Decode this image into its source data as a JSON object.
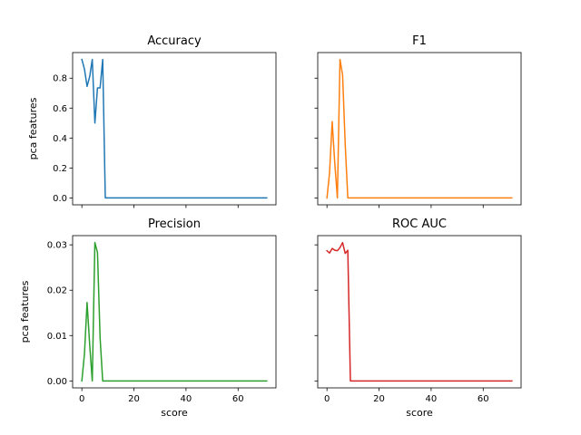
{
  "chart_data": [
    {
      "type": "line",
      "title": "Accuracy",
      "xlabel": "",
      "ylabel": "pca features",
      "color": "#1f77b4",
      "x": [
        0,
        1,
        2,
        3,
        4,
        5,
        6,
        7,
        8,
        9,
        10,
        20,
        30,
        40,
        50,
        60,
        71
      ],
      "y": [
        0.925,
        0.86,
        0.745,
        0.81,
        0.925,
        0.5,
        0.735,
        0.735,
        0.925,
        0,
        0,
        0,
        0,
        0,
        0,
        0,
        0
      ],
      "xlim": [
        -3.55,
        74.55
      ],
      "ylim": [
        -0.046,
        0.971
      ],
      "xticks": [
        0,
        20,
        40,
        60
      ],
      "xtick_labels": [
        "",
        "",
        "",
        ""
      ],
      "yticks": [
        0,
        0.2,
        0.4,
        0.6,
        0.8
      ],
      "ytick_labels": [
        "0.0",
        "0.2",
        "0.4",
        "0.6",
        "0.8"
      ]
    },
    {
      "type": "line",
      "title": "F1",
      "xlabel": "",
      "ylabel": "",
      "color": "#ff7f0e",
      "x": [
        0,
        1,
        2,
        3,
        4,
        5,
        6,
        7,
        8,
        9,
        10,
        20,
        30,
        40,
        50,
        60,
        71
      ],
      "y": [
        0,
        0.17,
        0.51,
        0.23,
        0,
        0.925,
        0.82,
        0.36,
        0,
        0,
        0,
        0,
        0,
        0,
        0,
        0,
        0
      ],
      "xlim": [
        -3.55,
        74.55
      ],
      "ylim": [
        -0.046,
        0.971
      ],
      "xticks": [
        0,
        20,
        40,
        60
      ],
      "xtick_labels": [
        "",
        "",
        "",
        ""
      ],
      "yticks": [
        0,
        0.2,
        0.4,
        0.6,
        0.8
      ],
      "ytick_labels": [
        "",
        "",
        "",
        "",
        ""
      ]
    },
    {
      "type": "line",
      "title": "Precision",
      "xlabel": "score",
      "ylabel": "pca features",
      "color": "#2ca02c",
      "x": [
        0,
        1,
        2,
        3,
        4,
        5,
        6,
        7,
        8,
        9,
        10,
        20,
        30,
        40,
        50,
        60,
        71
      ],
      "y": [
        0,
        0.006,
        0.0173,
        0.008,
        0,
        0.0305,
        0.0283,
        0.0095,
        0,
        0,
        0,
        0,
        0,
        0,
        0,
        0,
        0
      ],
      "xlim": [
        -3.55,
        74.55
      ],
      "ylim": [
        -0.00153,
        0.03203
      ],
      "xticks": [
        0,
        20,
        40,
        60
      ],
      "xtick_labels": [
        "0",
        "20",
        "40",
        "60"
      ],
      "yticks": [
        0,
        0.01,
        0.02,
        0.03
      ],
      "ytick_labels": [
        "0.00",
        "0.01",
        "0.02",
        "0.03"
      ]
    },
    {
      "type": "line",
      "title": "ROC AUC",
      "xlabel": "score",
      "ylabel": "",
      "color": "#d62728",
      "x": [
        0,
        1,
        2,
        3,
        4,
        5,
        6,
        7,
        8,
        9,
        10,
        20,
        30,
        40,
        50,
        60,
        71
      ],
      "y": [
        0.0287,
        0.0282,
        0.0292,
        0.0288,
        0.0287,
        0.0294,
        0.0305,
        0.0281,
        0.0288,
        0,
        0,
        0,
        0,
        0,
        0,
        0,
        0
      ],
      "xlim": [
        -3.55,
        74.55
      ],
      "ylim": [
        -0.00153,
        0.03203
      ],
      "xticks": [
        0,
        20,
        40,
        60
      ],
      "xtick_labels": [
        "0",
        "20",
        "40",
        "60"
      ],
      "yticks": [
        0,
        0.01,
        0.02,
        0.03
      ],
      "ytick_labels": [
        "",
        "",
        "",
        ""
      ]
    }
  ]
}
